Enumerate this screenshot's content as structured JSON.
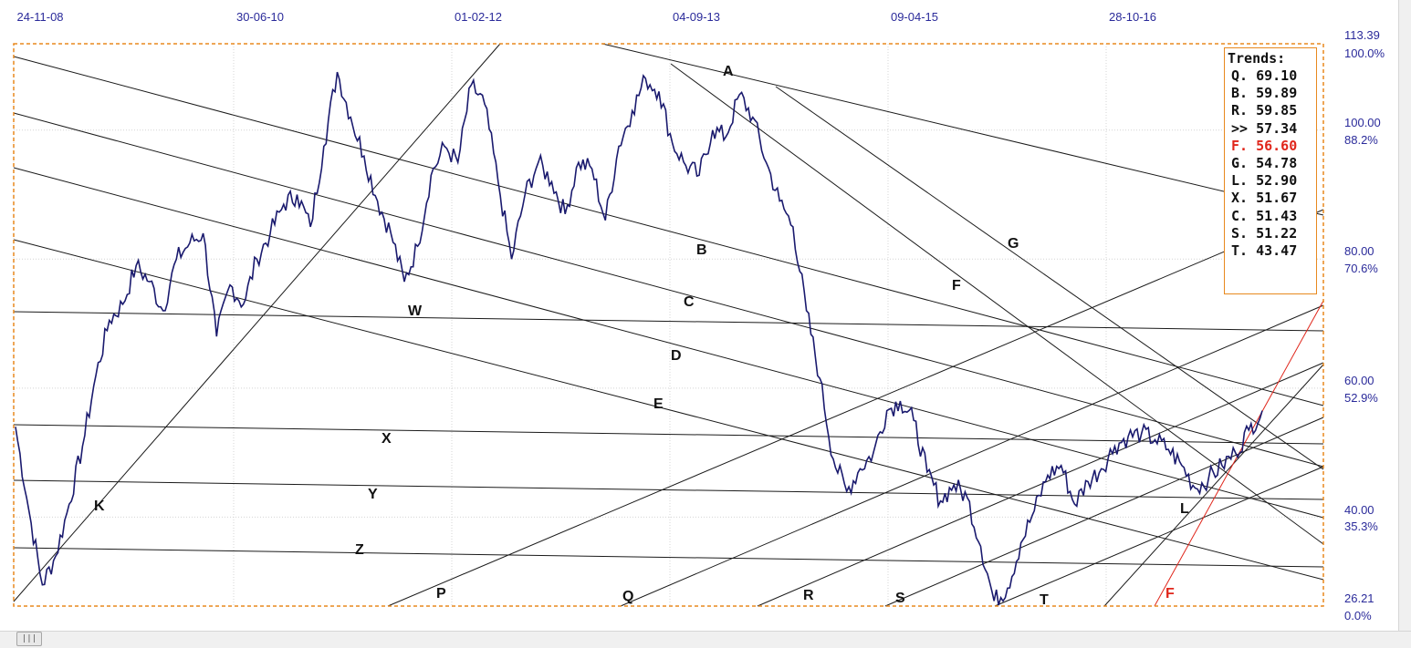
{
  "chart_data": {
    "type": "line",
    "title": "",
    "x_axis": {
      "tick_labels": [
        "24-11-08",
        "30-06-10",
        "01-02-12",
        "04-09-13",
        "09-04-15",
        "28-10-16"
      ]
    },
    "y_axis": {
      "range": [
        26.21,
        113.39
      ],
      "price_labels": [
        "113.39",
        "100.00",
        "80.00",
        "60.00",
        "40.00",
        "26.21"
      ],
      "percent_labels": [
        "100.0%",
        "88.2%",
        "70.6%",
        "52.9%",
        "35.3%",
        "0.0%"
      ]
    },
    "grid": true,
    "series": [
      {
        "color": "#1a1a6e",
        "points": [
          [
            "24-11-08",
            54.0
          ],
          [
            "2009-01",
            41.0
          ],
          [
            "2009-03",
            29.5
          ],
          [
            "2009-05",
            34.0
          ],
          [
            "2009-06",
            42.0
          ],
          [
            "2009-08",
            51.0
          ],
          [
            "2009-10",
            62.0
          ],
          [
            "2009-11",
            70.5
          ],
          [
            "2010-01",
            73.0
          ],
          [
            "2010-03",
            79.0
          ],
          [
            "2010-04",
            76.5
          ],
          [
            "2010-05",
            72.0
          ],
          [
            "2010-06",
            80.0
          ],
          [
            "30-06-10",
            82.5
          ],
          [
            "2010-08",
            84.0
          ],
          [
            "2010-09",
            68.0
          ],
          [
            "2010-10",
            76.0
          ],
          [
            "2010-12",
            73.0
          ],
          [
            "2011-01",
            80.0
          ],
          [
            "2011-02",
            84.0
          ],
          [
            "2011-03",
            88.5
          ],
          [
            "2011-04",
            90.0
          ],
          [
            "2011-05",
            85.0
          ],
          [
            "2011-06",
            97.5
          ],
          [
            "2011-08",
            109.0
          ],
          [
            "2011-09",
            102.0
          ],
          [
            "2011-10",
            96.0
          ],
          [
            "2011-11",
            89.0
          ],
          [
            "2011-12",
            84.0
          ],
          [
            "2012-01",
            76.5
          ],
          [
            "01-02-12",
            82.0
          ],
          [
            "2012-03",
            93.0
          ],
          [
            "2012-04",
            97.5
          ],
          [
            "2012-05",
            95.0
          ],
          [
            "2012-06",
            107.0
          ],
          [
            "2012-08",
            104.0
          ],
          [
            "2012-09",
            92.0
          ],
          [
            "2012-10",
            80.0
          ],
          [
            "2012-11",
            90.0
          ],
          [
            "2013-01",
            95.0
          ],
          [
            "2013-02",
            92.0
          ],
          [
            "2013-03",
            87.0
          ],
          [
            "2013-04",
            95.0
          ],
          [
            "2013-05",
            94.0
          ],
          [
            "2013-06",
            86.0
          ],
          [
            "2013-07",
            97.5
          ],
          [
            "2013-08",
            103.0
          ],
          [
            "04-09-13",
            108.0
          ],
          [
            "2013-10",
            106.0
          ],
          [
            "2013-11",
            98.0
          ],
          [
            "2013-12",
            94.5
          ],
          [
            "2014-01",
            93.0
          ],
          [
            "2014-02",
            100.0
          ],
          [
            "2014-04",
            99.0
          ],
          [
            "2014-05",
            105.5
          ],
          [
            "2014-06",
            102.0
          ],
          [
            "2014-07",
            95.0
          ],
          [
            "2014-08",
            89.0
          ],
          [
            "2014-09",
            85.0
          ],
          [
            "2014-10",
            72.0
          ],
          [
            "2014-11",
            61.5
          ],
          [
            "2014-12",
            49.0
          ],
          [
            "2015-01",
            44.0
          ],
          [
            "2015-02",
            47.5
          ],
          [
            "2015-03",
            50.0
          ],
          [
            "09-04-15",
            56.5
          ],
          [
            "2015-05",
            58.0
          ],
          [
            "2015-06",
            55.0
          ],
          [
            "2015-07",
            47.0
          ],
          [
            "2015-08",
            42.5
          ],
          [
            "2015-09",
            45.0
          ],
          [
            "2015-10",
            43.0
          ],
          [
            "2015-12",
            35.5
          ],
          [
            "2016-01",
            27.0
          ],
          [
            "2016-02",
            29.0
          ],
          [
            "2016-03",
            36.0
          ],
          [
            "2016-04",
            41.0
          ],
          [
            "2016-05",
            46.5
          ],
          [
            "2016-06",
            48.0
          ],
          [
            "2016-07",
            42.0
          ],
          [
            "2016-08",
            45.5
          ],
          [
            "2016-10",
            47.5
          ],
          [
            "28-10-16",
            51.0
          ],
          [
            "2016-12",
            52.5
          ],
          [
            "2017-01",
            53.0
          ],
          [
            "2017-02",
            52.0
          ],
          [
            "2017-03",
            50.5
          ],
          [
            "2017-05",
            48.0
          ],
          [
            "2017-06",
            44.5
          ],
          [
            "2017-07",
            46.0
          ],
          [
            "2017-08",
            48.0
          ],
          [
            "2017-09",
            50.0
          ],
          [
            "2017-10",
            53.5
          ],
          [
            "2017-11",
            56.5
          ]
        ]
      }
    ],
    "trend_line_labels": [
      "A",
      "B",
      "C",
      "D",
      "E",
      "F",
      "G",
      "W",
      "X",
      "Y",
      "Z",
      "K",
      "P",
      "Q",
      "R",
      "S",
      "T",
      "L",
      "F"
    ],
    "legend": {
      "title": "Trends:",
      "placement": "top-right",
      "entries": [
        {
          "label": "Q.",
          "value": "69.10"
        },
        {
          "label": "B.",
          "value": "59.89"
        },
        {
          "label": "R.",
          "value": "59.85"
        },
        {
          "label": ">>",
          "value": "57.34"
        },
        {
          "label": "F.",
          "value": "56.60",
          "highlight": true
        },
        {
          "label": "G.",
          "value": "54.78"
        },
        {
          "label": "L.",
          "value": "52.90"
        },
        {
          "label": "X.",
          "value": "51.67"
        },
        {
          "label": "C.",
          "value": "51.43"
        },
        {
          "label": "S.",
          "value": "51.22"
        },
        {
          "label": "T.",
          "value": "43.47"
        }
      ]
    }
  },
  "colors": {
    "price_line": "#1a1a6e",
    "trend_line": "#1a1a1a",
    "highlight_trend": "#e0261b",
    "frame": "#e8891e",
    "axis_text": "#2a2a9a",
    "grid": "#cfcfcf"
  },
  "scrollbar": {
    "thumb_icon": "grip-icon",
    "thumb_glyph": "|||"
  }
}
